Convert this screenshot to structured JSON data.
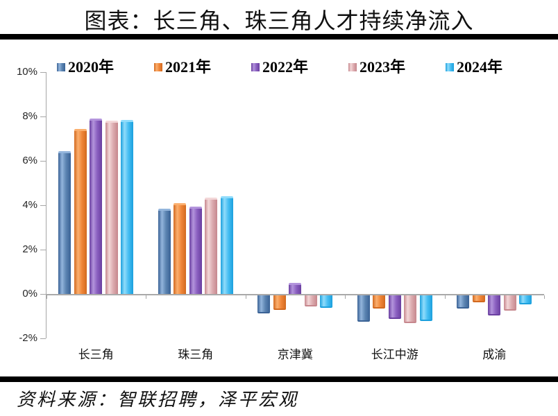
{
  "page": {
    "title": "图表：长三角、珠三角人才持续净流入",
    "source": "资料来源：智联招聘，泽平宏观"
  },
  "chart_data": {
    "type": "bar",
    "title": "图表：长三角、珠三角人才持续净流入",
    "categories": [
      "长三角",
      "珠三角",
      "京津冀",
      "长江中游",
      "成渝"
    ],
    "series": [
      {
        "name": "2020年",
        "color": "#5b84b1",
        "color_light": "#93b5dc",
        "color_dark": "#3a6295",
        "values": [
          6.45,
          3.85,
          -0.8,
          -1.2,
          -0.6
        ]
      },
      {
        "name": "2021年",
        "color": "#f08638",
        "color_light": "#fbaf6e",
        "color_dark": "#d2691f",
        "values": [
          7.45,
          4.1,
          -0.65,
          -0.6,
          -0.3
        ]
      },
      {
        "name": "2022年",
        "color": "#8a5fc0",
        "color_light": "#b394dc",
        "color_dark": "#6a3fa0",
        "values": [
          7.9,
          3.95,
          0.5,
          -1.05,
          -0.9
        ]
      },
      {
        "name": "2023年",
        "color": "#dcabaf",
        "color_light": "#f3d7d8",
        "color_dark": "#c6878d",
        "values": [
          7.8,
          4.35,
          -0.5,
          -1.25,
          -0.7
        ]
      },
      {
        "name": "2024年",
        "color": "#45bdf2",
        "color_light": "#90dcfb",
        "color_dark": "#1ba0dd",
        "values": [
          7.85,
          4.4,
          -0.55,
          -1.15,
          -0.4
        ]
      }
    ],
    "ylim": [
      -2,
      10
    ],
    "ytick_step": 2,
    "ytick_labels": [
      "10%",
      "8%",
      "6%",
      "4%",
      "2%",
      "0%",
      "-2%"
    ],
    "unit": "%",
    "legend_position": "top",
    "grid": false
  }
}
